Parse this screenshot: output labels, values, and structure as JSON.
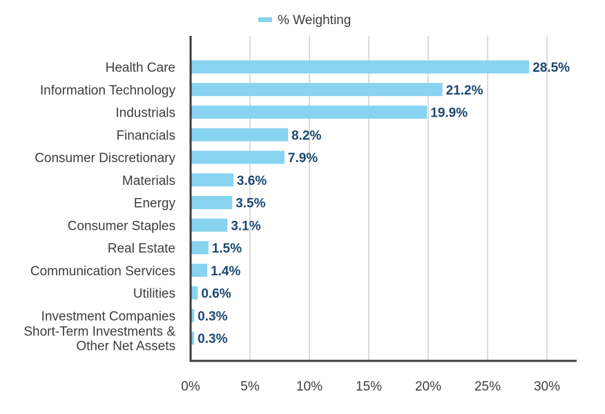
{
  "chart_data": {
    "type": "bar",
    "orientation": "horizontal",
    "legend": {
      "placement": "top-center",
      "label": "% Weighting"
    },
    "series": [
      {
        "name": "% Weighting",
        "color": "#87d3f0"
      }
    ],
    "categories": [
      [
        "Health Care"
      ],
      [
        "Information Technology"
      ],
      [
        "Industrials"
      ],
      [
        "Financials"
      ],
      [
        "Consumer Discretionary"
      ],
      [
        "Materials"
      ],
      [
        "Energy"
      ],
      [
        "Consumer Staples"
      ],
      [
        "Real Estate"
      ],
      [
        "Communication Services"
      ],
      [
        "Utilities"
      ],
      [
        "Investment Companies"
      ],
      [
        "Short-Term Investments &",
        "Other Net Assets"
      ]
    ],
    "values": [
      28.5,
      21.2,
      19.9,
      8.2,
      7.9,
      3.6,
      3.5,
      3.1,
      1.5,
      1.4,
      0.6,
      0.3,
      0.3
    ],
    "value_labels": [
      "28.5%",
      "21.2%",
      "19.9%",
      "8.2%",
      "7.9%",
      "3.6%",
      "3.5%",
      "3.1%",
      "1.5%",
      "1.4%",
      "0.6%",
      "0.3%",
      "0.3%"
    ],
    "xlim": [
      0,
      32.5
    ],
    "xticks": [
      0,
      5,
      10,
      15,
      20,
      25,
      30
    ],
    "xtick_labels": [
      "0%",
      "5%",
      "10%",
      "15%",
      "20%",
      "25%",
      "30%"
    ],
    "grid": true,
    "colors": {
      "bar": "#87d3f0",
      "value_label": "#1b4872",
      "axis": "#3d3d3d",
      "grid": "#d0d0d0"
    }
  }
}
